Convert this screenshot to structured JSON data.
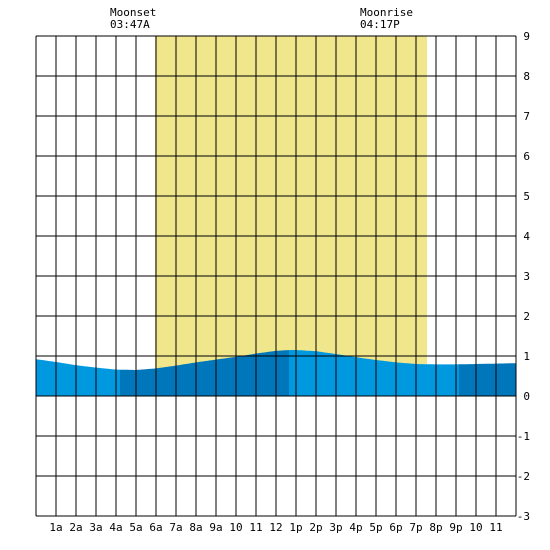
{
  "moon": {
    "set_label": "Moonset",
    "set_time": "03:47A",
    "rise_label": "Moonrise",
    "rise_time": "04:17P"
  },
  "colors": {
    "daylight": "#f0e68c",
    "tide_light": "#0099e0",
    "tide_dark": "#0077bb",
    "grid": "#000000",
    "background": "#ffffff"
  },
  "chart_data": {
    "type": "area",
    "title": "",
    "xlabel": "",
    "ylabel": "",
    "xlim": [
      0,
      24
    ],
    "ylim": [
      -3,
      9
    ],
    "yticks": [
      "-3",
      "-2",
      "-1",
      "0",
      "1",
      "2",
      "3",
      "4",
      "5",
      "6",
      "7",
      "8",
      "9"
    ],
    "xticks": [
      "1a",
      "2a",
      "3a",
      "4a",
      "5a",
      "6a",
      "7a",
      "8a",
      "9a",
      "10",
      "11",
      "12",
      "1p",
      "2p",
      "3p",
      "4p",
      "5p",
      "6p",
      "7p",
      "8p",
      "9p",
      "10",
      "11"
    ],
    "daylight": {
      "start_hour": 5.95,
      "end_hour": 19.55
    },
    "series": [
      {
        "x": [
          0,
          1,
          2,
          3,
          4,
          5,
          6,
          7,
          8,
          9,
          10,
          11,
          12,
          12.7,
          13,
          14,
          15,
          16,
          17,
          18,
          19,
          20,
          21,
          22,
          23,
          24
        ],
        "values": [
          0.92,
          0.85,
          0.77,
          0.71,
          0.66,
          0.65,
          0.69,
          0.76,
          0.84,
          0.91,
          0.98,
          1.06,
          1.13,
          1.15,
          1.15,
          1.12,
          1.05,
          0.97,
          0.9,
          0.84,
          0.8,
          0.79,
          0.79,
          0.8,
          0.81,
          0.82
        ]
      }
    ],
    "shade_bands": [
      {
        "start": 0,
        "end": 4.2,
        "shade": "light"
      },
      {
        "start": 4.2,
        "end": 12.65,
        "shade": "dark"
      },
      {
        "start": 12.65,
        "end": 21.15,
        "shade": "light"
      },
      {
        "start": 21.15,
        "end": 24,
        "shade": "dark"
      }
    ]
  }
}
